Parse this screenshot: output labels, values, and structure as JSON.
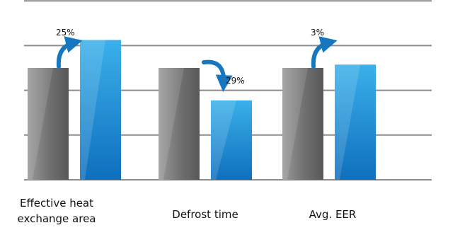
{
  "chart_data": {
    "type": "bar",
    "title": "",
    "xlabel": "",
    "ylabel": "",
    "ylim": [
      0,
      160
    ],
    "grid": true,
    "categories": [
      "Effective heat\nexchange area",
      "Defrost time",
      "Avg. EER"
    ],
    "series": [
      {
        "values": [
          100,
          100,
          100
        ]
      },
      {
        "values": [
          125,
          71,
          103
        ]
      }
    ],
    "annotations": [
      {
        "category": "Effective heat\nexchange area",
        "text": "25%",
        "direction": "up"
      },
      {
        "category": "Defrost time",
        "text": "29%",
        "direction": "down"
      },
      {
        "category": "Avg. EER",
        "text": "3%",
        "direction": "up"
      }
    ],
    "colors": {
      "baseline_bar": "#7a7a7a",
      "improved_bar": "#1a90d6",
      "arrow": "#1676bf",
      "grid": "#8c8c8c"
    }
  }
}
